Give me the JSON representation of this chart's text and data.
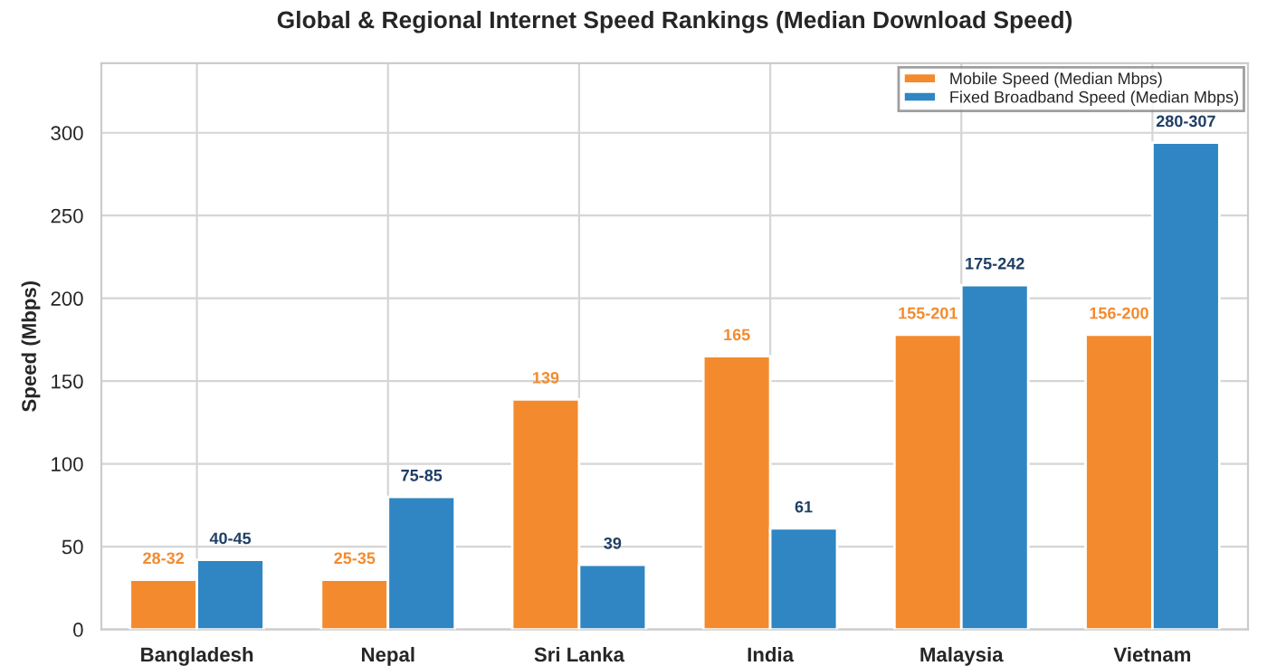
{
  "chart_data": {
    "type": "bar",
    "title": "Global & Regional Internet Speed Rankings (Median Download Speed)",
    "ylabel": "Speed (Mbps)",
    "categories": [
      "Bangladesh",
      "Nepal",
      "Sri Lanka",
      "India",
      "Malaysia",
      "Vietnam"
    ],
    "series": [
      {
        "name": "Mobile Speed (Median Mbps)",
        "color": "#f38b2e",
        "values": [
          30,
          30,
          139,
          165,
          178,
          178
        ],
        "value_labels": [
          "28-32",
          "25-35",
          "139",
          "165",
          "155-201",
          "156-200"
        ]
      },
      {
        "name": "Fixed Broadband Speed (Median Mbps)",
        "color": "#2f86c3",
        "values": [
          42,
          80,
          39,
          61,
          208,
          294
        ],
        "value_labels": [
          "40-45",
          "75-85",
          "39",
          "61",
          "175-242",
          "280-307"
        ]
      }
    ],
    "ylim": [
      0,
      342
    ],
    "yticks": [
      0,
      50,
      100,
      150,
      200,
      250,
      300
    ],
    "grid": true,
    "legend": "top right"
  }
}
